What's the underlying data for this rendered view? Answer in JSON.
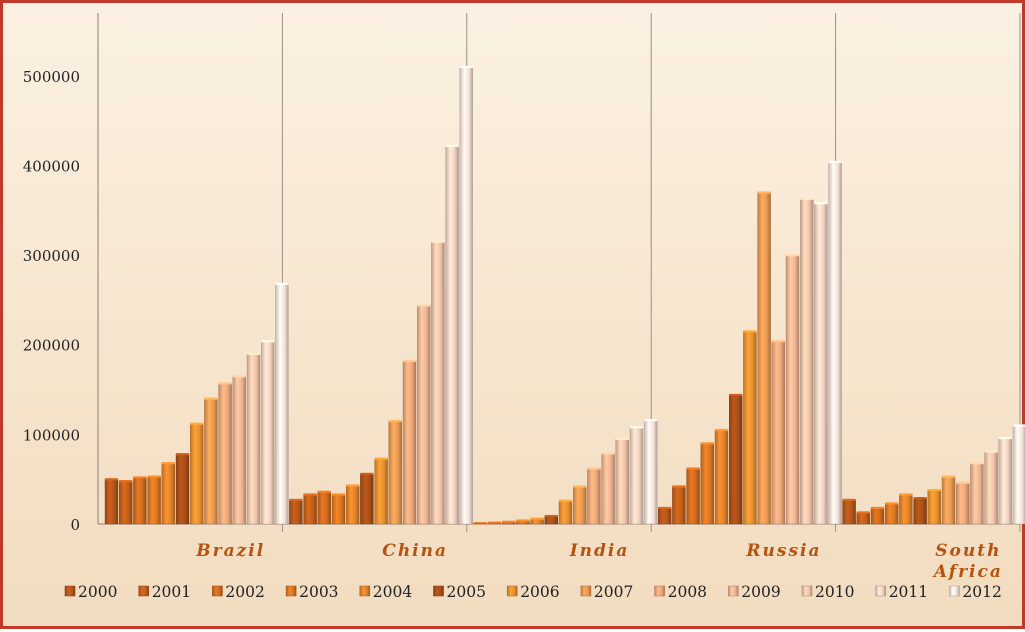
{
  "chart_data": {
    "type": "bar",
    "title": "",
    "xlabel": "",
    "ylabel": "",
    "ylim": [
      0,
      550000
    ],
    "y_ticks": [
      0,
      100000,
      200000,
      300000,
      400000,
      500000
    ],
    "y_tick_labels": [
      "0",
      "100000",
      "200000",
      "300000",
      "400000",
      "500000"
    ],
    "grid": false,
    "legend_position": "bottom",
    "categories": [
      "Brazil",
      "China",
      "India",
      "Russia",
      "South Africa"
    ],
    "series": [
      {
        "name": "2000",
        "color": "#b4561a",
        "values": [
          50000,
          27000,
          800,
          18000,
          27000
        ]
      },
      {
        "name": "2001",
        "color": "#c35f19",
        "values": [
          48000,
          33000,
          1500,
          42000,
          13000
        ]
      },
      {
        "name": "2002",
        "color": "#d06a1e",
        "values": [
          52000,
          36000,
          2500,
          62000,
          18000
        ]
      },
      {
        "name": "2003",
        "color": "#db7722",
        "values": [
          53000,
          33000,
          4000,
          90000,
          23000
        ]
      },
      {
        "name": "2004",
        "color": "#e2832b",
        "values": [
          68000,
          43000,
          6000,
          105000,
          33000
        ]
      },
      {
        "name": "2005",
        "color": "#a94f18",
        "values": [
          78000,
          56000,
          9000,
          144000,
          29000
        ]
      },
      {
        "name": "2006",
        "color": "#e8902f",
        "values": [
          112000,
          73000,
          26000,
          215000,
          38000
        ]
      },
      {
        "name": "2007",
        "color": "#e99a52",
        "values": [
          140000,
          115000,
          42000,
          370000,
          53000
        ]
      },
      {
        "name": "2008",
        "color": "#eea779",
        "values": [
          157000,
          182000,
          62000,
          204000,
          46000
        ]
      },
      {
        "name": "2009",
        "color": "#efb593",
        "values": [
          165000,
          244000,
          79000,
          300000,
          68000
        ]
      },
      {
        "name": "2010",
        "color": "#f1c4aa",
        "values": [
          190000,
          315000,
          95000,
          363000,
          81000
        ]
      },
      {
        "name": "2011",
        "color": "#f3d3c2",
        "values": [
          204000,
          422000,
          108000,
          358000,
          96000
        ]
      },
      {
        "name": "2012",
        "color": "#f6e2da",
        "values": [
          268000,
          510000,
          116000,
          404000,
          110000
        ]
      }
    ]
  },
  "category_display": [
    [
      "Brazil"
    ],
    [
      "China"
    ],
    [
      "India"
    ],
    [
      "Russia"
    ],
    [
      "South",
      "Africa"
    ]
  ]
}
